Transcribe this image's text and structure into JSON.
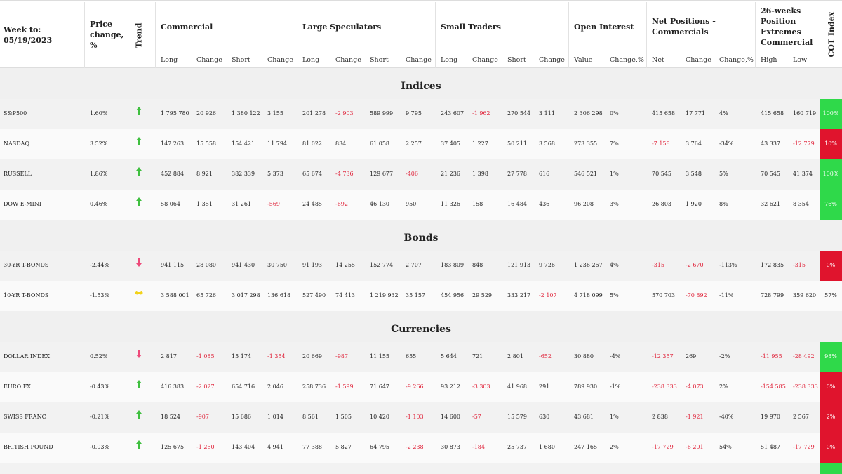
{
  "header": {
    "week_label": "Week to:",
    "week_date": "05/19/2023",
    "price_change": "Price change, %",
    "trend": "Trend",
    "groups": [
      "Commercial",
      "Large Speculators",
      "Small Traders",
      "Open Interest",
      "Net Positions - Commercials",
      "26-weeks Position Extremes Commercial"
    ],
    "cot_index": "COT Index",
    "subheaders": [
      {
        "label": "Long"
      },
      {
        "label": "Change",
        "red_negatives": true
      },
      {
        "label": "Short"
      },
      {
        "label": "Change",
        "red_negatives": true
      },
      {
        "label": "Long"
      },
      {
        "label": "Change",
        "red_negatives": true
      },
      {
        "label": "Short"
      },
      {
        "label": "Change",
        "red_negatives": true
      },
      {
        "label": "Long"
      },
      {
        "label": "Change",
        "red_negatives": true
      },
      {
        "label": "Short"
      },
      {
        "label": "Change",
        "red_negatives": true
      },
      {
        "label": "Value"
      },
      {
        "label": "Change,%"
      },
      {
        "label": "Net",
        "red_negatives": true
      },
      {
        "label": "Change",
        "red_negatives": true
      },
      {
        "label": "Change,%"
      },
      {
        "label": "High",
        "red_negatives": true
      },
      {
        "label": "Low",
        "red_negatives": true
      }
    ]
  },
  "sections": [
    {
      "title": "Indices",
      "rows": [
        {
          "name": "S&P500",
          "price_change": "1.60%",
          "trend": "up",
          "values": [
            "1 795 780",
            "20 926",
            "1 380 122",
            "3 155",
            "201 278",
            "-2 903",
            "589 999",
            "9 795",
            "243 607",
            "-1 962",
            "270 544",
            "3 111",
            "2 306 298",
            "0%",
            "415 658",
            "17 771",
            "4%",
            "415 658",
            "160 719"
          ],
          "cot_index": "100%",
          "cot_color": "#2fd94a"
        },
        {
          "name": "NASDAQ",
          "price_change": "3.52%",
          "trend": "up",
          "values": [
            "147 263",
            "15 558",
            "154 421",
            "11 794",
            "81 022",
            "834",
            "61 058",
            "2 257",
            "37 405",
            "1 227",
            "50 211",
            "3 568",
            "273 355",
            "7%",
            "-7 158",
            "3 764",
            "-34%",
            "43 337",
            "-12 779"
          ],
          "cot_index": "10%",
          "cot_color": "#e0142d"
        },
        {
          "name": "RUSSELL",
          "price_change": "1.86%",
          "trend": "up",
          "values": [
            "452 884",
            "8 921",
            "382 339",
            "5 373",
            "65 674",
            "-4 736",
            "129 677",
            "-406",
            "21 236",
            "1 398",
            "27 778",
            "616",
            "546 521",
            "1%",
            "70 545",
            "3 548",
            "5%",
            "70 545",
            "41 374"
          ],
          "cot_index": "100%",
          "cot_color": "#2fd94a"
        },
        {
          "name": "DOW E-MINI",
          "price_change": "0.46%",
          "trend": "up",
          "values": [
            "58 064",
            "1 351",
            "31 261",
            "-569",
            "24 485",
            "-692",
            "46 130",
            "950",
            "11 326",
            "158",
            "16 484",
            "436",
            "96 208",
            "3%",
            "26 803",
            "1 920",
            "8%",
            "32 621",
            "8 354"
          ],
          "cot_index": "76%",
          "cot_color": "#2fd94a"
        }
      ]
    },
    {
      "title": "Bonds",
      "rows": [
        {
          "name": "30-YR T-BONDS",
          "price_change": "-2.44%",
          "trend": "down",
          "values": [
            "941 115",
            "28 080",
            "941 430",
            "30 750",
            "91 193",
            "14 255",
            "152 774",
            "2 707",
            "183 809",
            "848",
            "121 913",
            "9 726",
            "1 236 267",
            "4%",
            "-315",
            "-2 670",
            "-113%",
            "172 835",
            "-315"
          ],
          "cot_index": "0%",
          "cot_color": "#e0142d"
        },
        {
          "name": "10-YR T-BONDS",
          "price_change": "-1.53%",
          "trend": "flat",
          "values": [
            "3 588 001",
            "65 726",
            "3 017 298",
            "136 618",
            "527 490",
            "74 413",
            "1 219 932",
            "35 157",
            "454 956",
            "29 529",
            "333 217",
            "-2 107",
            "4 718 099",
            "5%",
            "570 703",
            "-70 892",
            "-11%",
            "728 799",
            "359 620"
          ],
          "cot_index": "57%"
        }
      ]
    },
    {
      "title": "Currencies",
      "rows": [
        {
          "name": "DOLLAR INDEX",
          "price_change": "0.52%",
          "trend": "down",
          "values": [
            "2 817",
            "-1 085",
            "15 174",
            "-1 354",
            "20 669",
            "-987",
            "11 155",
            "655",
            "5 644",
            "721",
            "2 801",
            "-652",
            "30 880",
            "-4%",
            "-12 357",
            "269",
            "-2%",
            "-11 955",
            "-28 492"
          ],
          "cot_index": "98%",
          "cot_color": "#2fd94a"
        },
        {
          "name": "EURO FX",
          "price_change": "-0.43%",
          "trend": "up",
          "values": [
            "416 383",
            "-2 027",
            "654 716",
            "2 046",
            "258 736",
            "-1 599",
            "71 647",
            "-9 266",
            "93 212",
            "-3 303",
            "41 968",
            "291",
            "789 930",
            "-1%",
            "-238 333",
            "-4 073",
            "2%",
            "-154 585",
            "-238 333"
          ],
          "cot_index": "0%",
          "cot_color": "#e0142d"
        },
        {
          "name": "SWISS FRANC",
          "price_change": "-0.21%",
          "trend": "up",
          "values": [
            "18 524",
            "-907",
            "15 686",
            "1 014",
            "8 561",
            "1 505",
            "10 420",
            "-1 103",
            "14 600",
            "-57",
            "15 579",
            "630",
            "43 681",
            "1%",
            "2 838",
            "-1 921",
            "-40%",
            "19 970",
            "2 567"
          ],
          "cot_index": "2%",
          "cot_color": "#e0142d"
        },
        {
          "name": "BRITISH POUND",
          "price_change": "-0.03%",
          "trend": "up",
          "values": [
            "125 675",
            "-1 260",
            "143 404",
            "4 941",
            "77 388",
            "5 827",
            "64 795",
            "-2 238",
            "30 873",
            "-184",
            "25 737",
            "1 680",
            "247 165",
            "2%",
            "-17 729",
            "-6 201",
            "54%",
            "51 487",
            "-17 729"
          ],
          "cot_index": "0%",
          "cot_color": "#e0142d"
        }
      ]
    }
  ]
}
